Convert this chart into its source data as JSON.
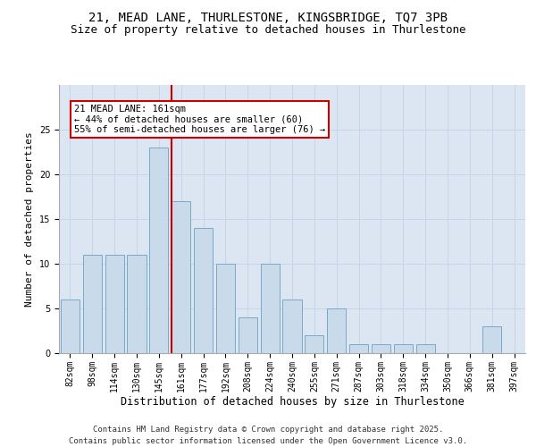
{
  "title1": "21, MEAD LANE, THURLESTONE, KINGSBRIDGE, TQ7 3PB",
  "title2": "Size of property relative to detached houses in Thurlestone",
  "xlabel": "Distribution of detached houses by size in Thurlestone",
  "ylabel": "Number of detached properties",
  "categories": [
    "82sqm",
    "98sqm",
    "114sqm",
    "130sqm",
    "145sqm",
    "161sqm",
    "177sqm",
    "192sqm",
    "208sqm",
    "224sqm",
    "240sqm",
    "255sqm",
    "271sqm",
    "287sqm",
    "303sqm",
    "318sqm",
    "334sqm",
    "350sqm",
    "366sqm",
    "381sqm",
    "397sqm"
  ],
  "values": [
    6,
    11,
    11,
    11,
    23,
    17,
    14,
    10,
    4,
    10,
    6,
    2,
    5,
    1,
    1,
    1,
    1,
    0,
    0,
    3,
    0
  ],
  "bar_color": "#c9daea",
  "bar_edgecolor": "#7aaac8",
  "vline_color": "#cc0000",
  "annotation_text": "21 MEAD LANE: 161sqm\n← 44% of detached houses are smaller (60)\n55% of semi-detached houses are larger (76) →",
  "annotation_box_edgecolor": "#cc0000",
  "annotation_box_facecolor": "#ffffff",
  "ylim": [
    0,
    30
  ],
  "yticks": [
    0,
    5,
    10,
    15,
    20,
    25
  ],
  "grid_color": "#c8d4e8",
  "bg_color": "#dce6f2",
  "footer_text": "Contains HM Land Registry data © Crown copyright and database right 2025.\nContains public sector information licensed under the Open Government Licence v3.0.",
  "title1_fontsize": 10,
  "title2_fontsize": 9,
  "xlabel_fontsize": 8.5,
  "ylabel_fontsize": 8,
  "tick_fontsize": 7,
  "annotation_fontsize": 7.5,
  "footer_fontsize": 6.5
}
